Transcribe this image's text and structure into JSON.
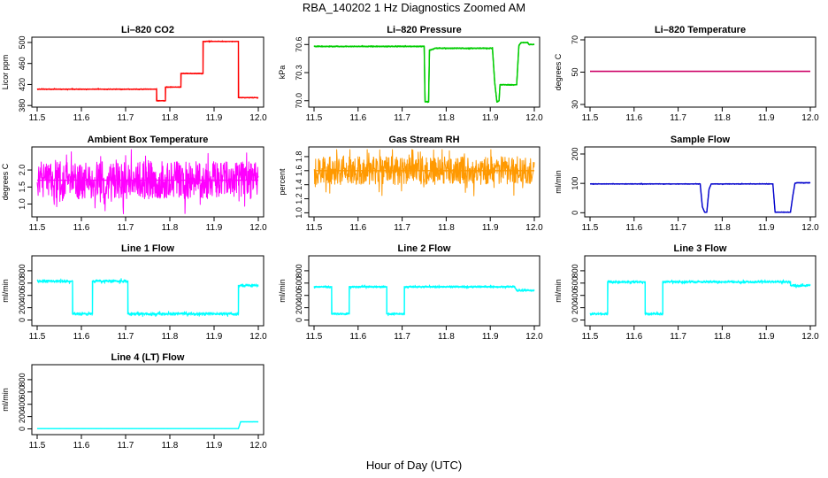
{
  "figure": {
    "title": "RBA_140202  1 Hz Diagnostics Zoomed AM",
    "xlabel": "Hour of Day (UTC)"
  },
  "chart_data": [
    {
      "type": "line",
      "title": "Li–820 CO2",
      "ylabel": "Licor ppm",
      "color": "#ff0000",
      "xlim": [
        11.5,
        12.0
      ],
      "ylim": [
        382,
        505
      ],
      "xticks": [
        "11.5",
        "11.6",
        "11.7",
        "11.8",
        "11.9",
        "12.0"
      ],
      "yticks": [
        {
          "v": 380,
          "label": "380"
        },
        {
          "v": 420,
          "label": "420"
        },
        {
          "v": 460,
          "label": "460"
        },
        {
          "v": 500,
          "label": "500"
        }
      ],
      "noise": 1,
      "x": [
        11.5,
        11.77,
        11.77,
        11.775,
        11.775,
        11.79,
        11.79,
        11.81,
        11.81,
        11.825,
        11.825,
        11.84,
        11.84,
        11.875,
        11.875,
        11.955,
        11.955,
        11.965,
        11.965,
        12.0
      ],
      "y": [
        411,
        411,
        389,
        389,
        389,
        389,
        415,
        415,
        415,
        415,
        441,
        441,
        441,
        441,
        502,
        502,
        395,
        395,
        395,
        395
      ]
    },
    {
      "type": "line",
      "title": "Li–820 Pressure",
      "ylabel": "kPa",
      "color": "#00cc00",
      "xlim": [
        11.5,
        12.0
      ],
      "ylim": [
        69.96,
        70.65
      ],
      "xticks": [
        "11.5",
        "11.6",
        "11.7",
        "11.8",
        "11.9",
        "12.0"
      ],
      "yticks": [
        {
          "v": 70.0,
          "label": "70.0"
        },
        {
          "v": 70.3,
          "label": "70.3"
        },
        {
          "v": 70.6,
          "label": "70.6"
        }
      ],
      "noise": 0.005,
      "x": [
        11.5,
        11.75,
        11.752,
        11.76,
        11.762,
        11.77,
        11.775,
        11.905,
        11.91,
        11.915,
        11.92,
        11.922,
        11.96,
        11.965,
        11.97,
        11.985,
        11.988,
        12.0
      ],
      "y": [
        70.58,
        70.58,
        69.99,
        69.99,
        70.54,
        70.55,
        70.56,
        70.56,
        70.2,
        69.99,
        70.0,
        70.17,
        70.17,
        70.59,
        70.62,
        70.62,
        70.6,
        70.6
      ]
    },
    {
      "type": "line",
      "title": "Li–820 Temperature",
      "ylabel": "degrees C",
      "color": "#cc0066",
      "xlim": [
        11.5,
        12.0
      ],
      "ylim": [
        30,
        70
      ],
      "xticks": [
        "11.5",
        "11.6",
        "11.7",
        "11.8",
        "11.9",
        "12.0"
      ],
      "yticks": [
        {
          "v": 30,
          "label": "30"
        },
        {
          "v": 50,
          "label": "50"
        },
        {
          "v": 70,
          "label": "70"
        }
      ],
      "noise": 0,
      "x": [
        11.5,
        12.0
      ],
      "y": [
        50.5,
        50.5
      ]
    },
    {
      "type": "line",
      "title": "Ambient Box Temperature",
      "ylabel": "degrees C",
      "color": "#ff00ff",
      "xlim": [
        11.5,
        12.0
      ],
      "ylim": [
        0.7,
        2.6
      ],
      "xticks": [
        "11.5",
        "11.6",
        "11.7",
        "11.8",
        "11.9",
        "12.0"
      ],
      "yticks": [
        {
          "v": 1.0,
          "label": "1.0"
        },
        {
          "v": 1.5,
          "label": "1.5"
        },
        {
          "v": 2.0,
          "label": "2.0"
        }
      ],
      "noise": 0.55,
      "x": [
        11.5,
        12.0
      ],
      "y": [
        1.7,
        1.7
      ]
    },
    {
      "type": "line",
      "title": "Gas Stream RH",
      "ylabel": "percent",
      "color": "#ff9900",
      "xlim": [
        11.5,
        12.0
      ],
      "ylim": [
        0.98,
        1.9
      ],
      "xticks": [
        "11.5",
        "11.6",
        "11.7",
        "11.8",
        "11.9",
        "12.0"
      ],
      "yticks": [
        {
          "v": 1.0,
          "label": "1.0"
        },
        {
          "v": 1.2,
          "label": "1.2"
        },
        {
          "v": 1.4,
          "label": "1.4"
        },
        {
          "v": 1.6,
          "label": "1.6"
        },
        {
          "v": 1.8,
          "label": "1.8"
        }
      ],
      "noise": 0.2,
      "x": [
        11.5,
        12.0
      ],
      "y": [
        1.6,
        1.6
      ]
    },
    {
      "type": "line",
      "title": "Sample Flow",
      "ylabel": "ml/min",
      "color": "#0000cc",
      "xlim": [
        11.5,
        12.0
      ],
      "ylim": [
        -5,
        215
      ],
      "xticks": [
        "11.5",
        "11.6",
        "11.7",
        "11.8",
        "11.9",
        "12.0"
      ],
      "yticks": [
        {
          "v": 0,
          "label": "0"
        },
        {
          "v": 100,
          "label": "100"
        },
        {
          "v": 200,
          "label": "200"
        }
      ],
      "noise": 1.5,
      "x": [
        11.5,
        11.75,
        11.755,
        11.76,
        11.765,
        11.77,
        11.775,
        11.915,
        11.92,
        11.955,
        11.96,
        11.965,
        11.97,
        12.0
      ],
      "y": [
        98,
        98,
        20,
        2,
        2,
        80,
        98,
        98,
        2,
        2,
        55,
        100,
        102,
        102
      ]
    },
    {
      "type": "line",
      "title": "Line 1 Flow",
      "ylabel": "ml/min",
      "color": "#00ffff",
      "xlim": [
        11.5,
        12.0
      ],
      "ylim": [
        -50,
        1000
      ],
      "xticks": [
        "11.5",
        "11.6",
        "11.7",
        "11.8",
        "11.9",
        "12.0"
      ],
      "yticks": [
        {
          "v": 0,
          "label": "0"
        },
        {
          "v": 200,
          "label": "200"
        },
        {
          "v": 400,
          "label": "400"
        },
        {
          "v": 600,
          "label": "600"
        },
        {
          "v": 800,
          "label": "800"
        }
      ],
      "noise": 25,
      "x": [
        11.5,
        11.58,
        11.58,
        11.625,
        11.625,
        11.705,
        11.705,
        11.955,
        11.955,
        12.0
      ],
      "y": [
        630,
        630,
        100,
        100,
        630,
        630,
        100,
        100,
        560,
        560
      ]
    },
    {
      "type": "line",
      "title": "Line 2 Flow",
      "ylabel": "ml/min",
      "color": "#00ffff",
      "xlim": [
        11.5,
        12.0
      ],
      "ylim": [
        -50,
        1000
      ],
      "xticks": [
        "11.5",
        "11.6",
        "11.7",
        "11.8",
        "11.9",
        "12.0"
      ],
      "yticks": [
        {
          "v": 0,
          "label": "0"
        },
        {
          "v": 200,
          "label": "200"
        },
        {
          "v": 400,
          "label": "400"
        },
        {
          "v": 600,
          "label": "600"
        },
        {
          "v": 800,
          "label": "800"
        }
      ],
      "noise": 18,
      "x": [
        11.5,
        11.54,
        11.54,
        11.58,
        11.58,
        11.665,
        11.665,
        11.705,
        11.705,
        11.955,
        11.96,
        12.0
      ],
      "y": [
        540,
        540,
        100,
        100,
        540,
        540,
        100,
        100,
        540,
        540,
        480,
        480
      ]
    },
    {
      "type": "line",
      "title": "Line 3 Flow",
      "ylabel": "ml/min",
      "color": "#00ffff",
      "xlim": [
        11.5,
        12.0
      ],
      "ylim": [
        -50,
        1000
      ],
      "xticks": [
        "11.5",
        "11.6",
        "11.7",
        "11.8",
        "11.9",
        "12.0"
      ],
      "yticks": [
        {
          "v": 0,
          "label": "0"
        },
        {
          "v": 200,
          "label": "200"
        },
        {
          "v": 400,
          "label": "400"
        },
        {
          "v": 600,
          "label": "600"
        },
        {
          "v": 800,
          "label": "800"
        }
      ],
      "noise": 22,
      "x": [
        11.5,
        11.54,
        11.54,
        11.625,
        11.625,
        11.665,
        11.665,
        11.955,
        11.955,
        12.0
      ],
      "y": [
        100,
        100,
        620,
        620,
        100,
        100,
        620,
        620,
        560,
        560
      ]
    },
    {
      "type": "line",
      "title": "Line 4 (LT) Flow",
      "ylabel": "ml/min",
      "color": "#00ffff",
      "xlim": [
        11.5,
        12.0
      ],
      "ylim": [
        -50,
        1000
      ],
      "xticks": [
        "11.5",
        "11.6",
        "11.7",
        "11.8",
        "11.9",
        "12.0"
      ],
      "yticks": [
        {
          "v": 0,
          "label": "0"
        },
        {
          "v": 200,
          "label": "200"
        },
        {
          "v": 400,
          "label": "400"
        },
        {
          "v": 600,
          "label": "600"
        },
        {
          "v": 800,
          "label": "800"
        }
      ],
      "noise": 2,
      "x": [
        11.5,
        11.955,
        11.96,
        12.0
      ],
      "y": [
        5,
        5,
        115,
        115
      ]
    }
  ]
}
